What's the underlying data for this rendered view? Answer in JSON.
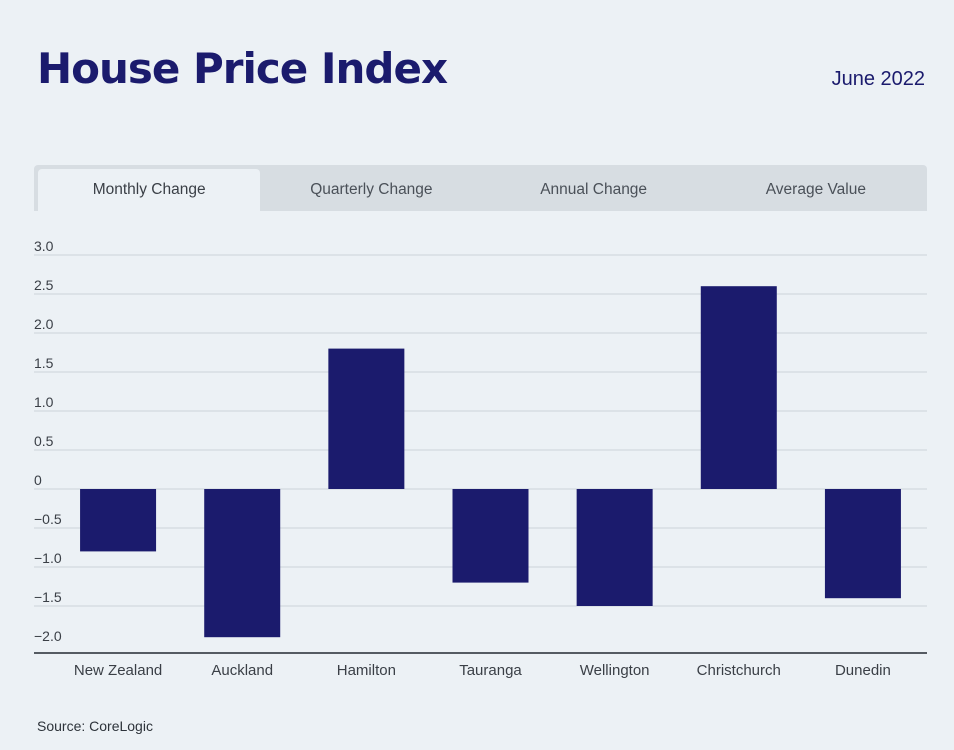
{
  "header": {
    "title": "House Price Index",
    "date": "June 2022"
  },
  "tabs": [
    {
      "label": "Monthly Change",
      "active": true
    },
    {
      "label": "Quarterly Change",
      "active": false
    },
    {
      "label": "Annual Change",
      "active": false
    },
    {
      "label": "Average Value",
      "active": false
    }
  ],
  "colors": {
    "bar": "#1b1b6d",
    "title": "#1b1b6d",
    "grid": "#cdd4d9",
    "axis": "#555b62"
  },
  "chart_data": {
    "type": "bar",
    "categories": [
      "New Zealand",
      "Auckland",
      "Hamilton",
      "Tauranga",
      "Wellington",
      "Christchurch",
      "Dunedin"
    ],
    "values": [
      -0.8,
      -1.9,
      1.8,
      -1.2,
      -1.5,
      2.6,
      -1.4
    ],
    "ylim": [
      -2.0,
      3.0
    ],
    "yticks": [
      3.0,
      2.5,
      2.0,
      1.5,
      1.0,
      0.5,
      0,
      -0.5,
      -1.0,
      -1.5,
      -2.0
    ],
    "ytick_labels": [
      "3.0",
      "2.5",
      "2.0",
      "1.5",
      "1.0",
      "0.5",
      "0",
      "−0.5",
      "−1.0",
      "−1.5",
      "−2.0"
    ],
    "grid": true
  },
  "footer": {
    "source": "Source: CoreLogic"
  }
}
